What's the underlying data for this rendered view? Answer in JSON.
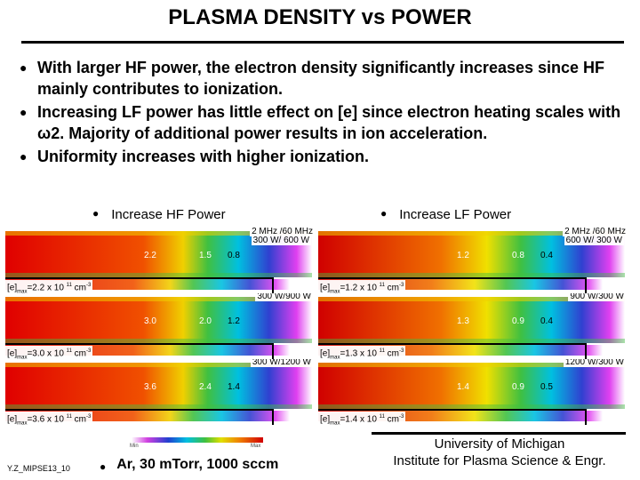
{
  "title": "PLASMA DENSITY vs POWER",
  "bullets": [
    "With larger HF power, the electron density significantly increases since HF mainly contributes to ionization.",
    "Increasing LF power has little effect on [e] since electron heating scales with ω2. Majority of additional power results in ion acceleration.",
    "Uniformity increases with higher ionization."
  ],
  "left_heading": "Increase HF Power",
  "right_heading": "Increase LF Power",
  "left_panels": [
    {
      "freq": "2 MHz /60 MHz",
      "power": "300 W/ 600 W",
      "values": [
        "2.2",
        "1.5",
        "0.8"
      ],
      "emax": "2.2",
      "emax_exp": "11"
    },
    {
      "freq": "",
      "power": "300 W/900 W",
      "values": [
        "3.0",
        "2.0",
        "1.2"
      ],
      "emax": "3.0",
      "emax_exp": "11"
    },
    {
      "freq": "",
      "power": "300 W/1200 W",
      "values": [
        "3.6",
        "2.4",
        "1.4"
      ],
      "emax": "3.6",
      "emax_exp": "11"
    }
  ],
  "right_panels": [
    {
      "freq": "2 MHz /60 MHz",
      "power": "600 W/ 300 W",
      "values": [
        "1.2",
        "0.8",
        "0.4"
      ],
      "emax": "1.2",
      "emax_exp": "11"
    },
    {
      "freq": "",
      "power": "900 W/300 W",
      "values": [
        "1.3",
        "0.9",
        "0.4"
      ],
      "emax": "1.3",
      "emax_exp": "11"
    },
    {
      "freq": "",
      "power": "1200 W/300 W",
      "values": [
        "1.4",
        "0.9",
        "0.5"
      ],
      "emax": "1.4",
      "emax_exp": "11"
    }
  ],
  "emax_prefix": "[e]",
  "emax_sub": "max",
  "emax_mid": " x 10",
  "emax_unit": " cm",
  "emax_unit_exp": "-3",
  "colorbar": {
    "min": "Min",
    "max": "Max"
  },
  "footer_left": "Y.Z_MIPSE13_10",
  "footer_bullet": "Ar, 30 mTorr, 1000 sccm",
  "university_line1": "University of Michigan",
  "university_line2": "Institute for Plasma Science & Engr."
}
